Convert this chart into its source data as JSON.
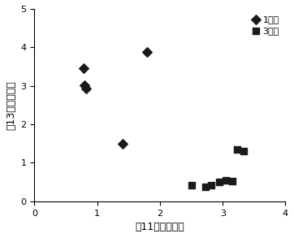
{
  "diamond_x": [
    0.78,
    0.8,
    0.83,
    1.4,
    1.8
  ],
  "diamond_y": [
    3.45,
    3.02,
    2.93,
    1.5,
    3.87
  ],
  "square_x": [
    2.5,
    2.72,
    2.82,
    2.95,
    3.05,
    3.15,
    3.23,
    3.33
  ],
  "square_y": [
    0.42,
    0.37,
    0.42,
    0.5,
    0.55,
    0.52,
    1.35,
    1.3
  ],
  "xlabel": "到11年陈的距离",
  "ylabel": "到13年陈的距离",
  "legend_1": "1年陈",
  "legend_3": "3年陈",
  "xlim": [
    0,
    4
  ],
  "ylim": [
    0,
    5
  ],
  "xticks": [
    0,
    1,
    2,
    3,
    4
  ],
  "yticks": [
    0,
    1,
    2,
    3,
    4,
    5
  ],
  "marker_color": "#1a1a1a",
  "bg_color": "#ffffff"
}
